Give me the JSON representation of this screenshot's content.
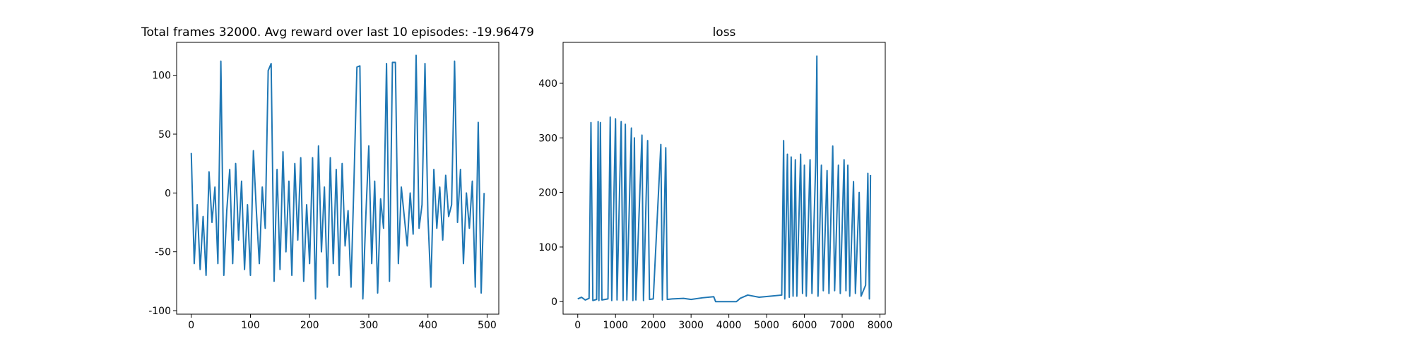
{
  "chart_data": [
    {
      "type": "line",
      "title": "Total frames 32000. Avg reward over last 10 episodes: -19.96479",
      "color": "#1f77b4",
      "x": [
        0,
        5,
        10,
        15,
        20,
        25,
        30,
        35,
        40,
        45,
        50,
        55,
        60,
        65,
        70,
        75,
        80,
        85,
        90,
        95,
        100,
        105,
        110,
        115,
        120,
        125,
        130,
        135,
        140,
        145,
        150,
        155,
        160,
        165,
        170,
        175,
        180,
        185,
        190,
        195,
        200,
        205,
        210,
        215,
        220,
        225,
        230,
        235,
        240,
        245,
        250,
        255,
        260,
        265,
        270,
        275,
        280,
        285,
        290,
        295,
        300,
        305,
        310,
        315,
        320,
        325,
        330,
        335,
        340,
        345,
        350,
        355,
        360,
        365,
        370,
        375,
        380,
        385,
        390,
        395,
        400,
        405,
        410,
        415,
        420,
        425,
        430,
        435,
        440,
        445,
        450,
        455,
        460,
        465,
        470,
        475,
        480,
        485,
        490,
        495
      ],
      "values": [
        34,
        -60,
        -10,
        -65,
        -20,
        -70,
        18,
        -25,
        5,
        -60,
        112,
        -70,
        -15,
        20,
        -60,
        25,
        -40,
        10,
        -65,
        -10,
        -70,
        36,
        -15,
        -60,
        5,
        -30,
        104,
        110,
        -75,
        20,
        -65,
        35,
        -50,
        10,
        -70,
        25,
        -40,
        30,
        -75,
        -10,
        -60,
        30,
        -90,
        40,
        -50,
        5,
        -80,
        30,
        -60,
        20,
        -70,
        25,
        -45,
        -15,
        -80,
        10,
        107,
        108,
        -90,
        -20,
        40,
        -60,
        10,
        -85,
        -5,
        -30,
        110,
        -75,
        111,
        111,
        -60,
        5,
        -20,
        -45,
        0,
        -35,
        117,
        -30,
        -10,
        110,
        -20,
        -80,
        20,
        -30,
        5,
        -40,
        15,
        -20,
        -10,
        112,
        -25,
        20,
        -60,
        0,
        -30,
        10,
        -80,
        60,
        -85,
        0
      ],
      "xlim": [
        -24.75,
        519.75
      ],
      "xticks": [
        0,
        100,
        200,
        300,
        400,
        500
      ],
      "ylim": [
        -103,
        128
      ],
      "yticks": [
        -100,
        -50,
        0,
        50,
        100
      ]
    },
    {
      "type": "line",
      "title": "loss",
      "color": "#1f77b4",
      "x": [
        0,
        100,
        200,
        300,
        350,
        400,
        500,
        540,
        560,
        600,
        640,
        800,
        860,
        900,
        1000,
        1040,
        1150,
        1200,
        1260,
        1300,
        1420,
        1460,
        1500,
        1540,
        1700,
        1740,
        1850,
        1900,
        2000,
        2200,
        2240,
        2330,
        2370,
        2500,
        2800,
        3000,
        3300,
        3600,
        3650,
        4200,
        4300,
        4500,
        4800,
        5100,
        5400,
        5450,
        5480,
        5550,
        5600,
        5650,
        5700,
        5760,
        5800,
        5900,
        5950,
        6000,
        6050,
        6150,
        6200,
        6300,
        6330,
        6360,
        6450,
        6500,
        6600,
        6650,
        6750,
        6800,
        6900,
        6950,
        7050,
        7100,
        7150,
        7200,
        7300,
        7350,
        7450,
        7500,
        7620,
        7680,
        7720,
        7750
      ],
      "values": [
        5,
        8,
        3,
        6,
        328,
        2,
        4,
        330,
        2,
        328,
        3,
        5,
        338,
        2,
        335,
        3,
        330,
        2,
        325,
        3,
        318,
        2,
        300,
        3,
        305,
        2,
        295,
        4,
        5,
        288,
        3,
        282,
        4,
        5,
        6,
        4,
        7,
        9,
        0,
        0,
        6,
        12,
        8,
        10,
        12,
        295,
        5,
        270,
        8,
        265,
        10,
        260,
        10,
        270,
        15,
        250,
        10,
        260,
        15,
        255,
        450,
        10,
        250,
        20,
        240,
        15,
        285,
        20,
        250,
        15,
        260,
        20,
        250,
        10,
        220,
        15,
        200,
        10,
        30,
        235,
        5,
        232
      ],
      "xlim": [
        -388,
        8140
      ],
      "xticks": [
        0,
        1000,
        2000,
        3000,
        4000,
        5000,
        6000,
        7000,
        8000
      ],
      "ylim": [
        -23,
        475
      ],
      "yticks": [
        0,
        100,
        200,
        300,
        400
      ]
    }
  ]
}
